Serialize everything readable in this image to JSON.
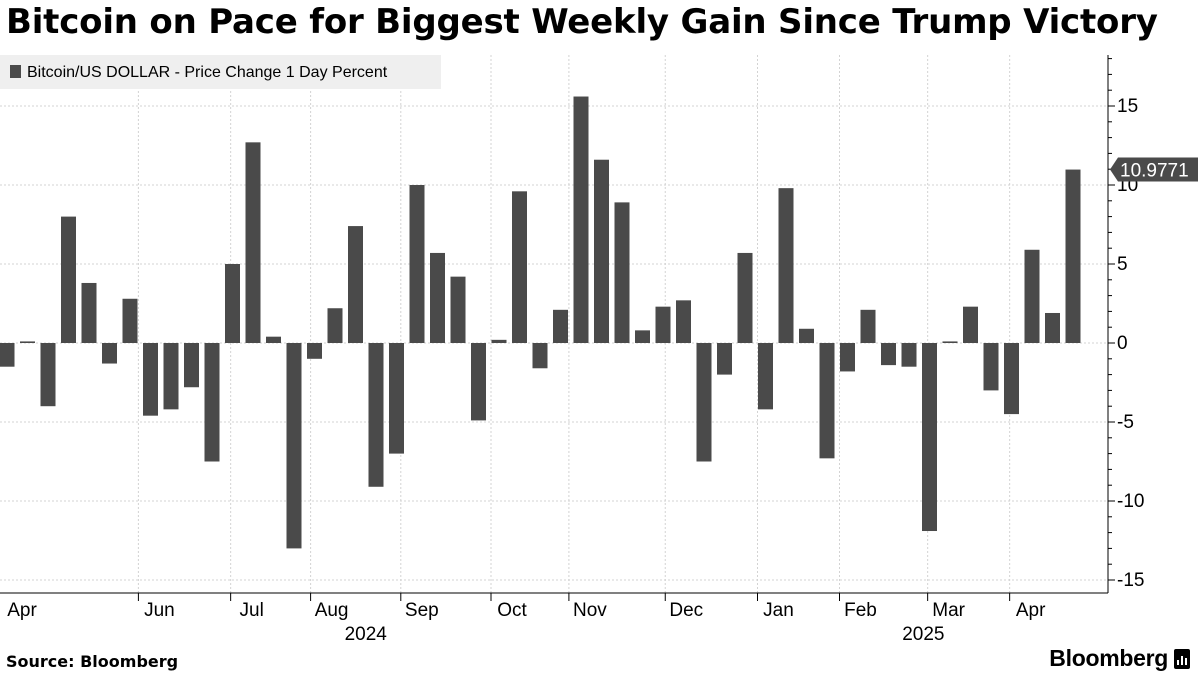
{
  "header": {
    "title": "Bitcoin on Pace for Biggest Weekly Gain Since Trump Victory"
  },
  "footer": {
    "source": "Source: Bloomberg",
    "brand": "Bloomberg"
  },
  "colors": {
    "bar": "#4a4a4a",
    "grid": "#d3d3d3",
    "legend_bg": "#efefef",
    "callout": "#4a4a4a"
  },
  "chart_data": {
    "type": "bar",
    "series": [
      {
        "name": "Bitcoin/US DOLLAR - Price Change 1 Day Percent",
        "values": [
          -1.5,
          0.1,
          -4.0,
          8.0,
          3.8,
          -1.3,
          2.8,
          -4.6,
          -4.2,
          -2.8,
          -7.5,
          5.0,
          12.7,
          0.4,
          -13.0,
          -1.0,
          2.2,
          7.4,
          -9.1,
          -7.0,
          10.0,
          5.7,
          4.2,
          -4.9,
          0.2,
          9.6,
          -1.6,
          2.1,
          15.6,
          11.6,
          8.9,
          0.8,
          2.3,
          2.7,
          -7.5,
          -2.0,
          5.7,
          -4.2,
          9.8,
          0.9,
          -7.3,
          -1.8,
          2.1,
          -1.4,
          -1.5,
          -11.9,
          0.1,
          2.3,
          -3.0,
          -4.5,
          5.9,
          1.9,
          10.9771
        ]
      }
    ],
    "ylim": [
      -15,
      18
    ],
    "yticks": [
      -15,
      -10,
      -5,
      0,
      5,
      10,
      15
    ],
    "y_axis_side": "right",
    "grid": true,
    "legend_position": "top-left",
    "callout_value": "10.9771",
    "month_labels": [
      {
        "label": "Apr",
        "bar_index": 0
      },
      {
        "label": "Jun",
        "bar_index": 6.8
      },
      {
        "label": "Jul",
        "bar_index": 11.3
      },
      {
        "label": "Aug",
        "bar_index": 15.2
      },
      {
        "label": "Sep",
        "bar_index": 19.6
      },
      {
        "label": "Oct",
        "bar_index": 24.0
      },
      {
        "label": "Nov",
        "bar_index": 27.8
      },
      {
        "label": "Dec",
        "bar_index": 32.5
      },
      {
        "label": "Jan",
        "bar_index": 37.0
      },
      {
        "label": "Feb",
        "bar_index": 41.0
      },
      {
        "label": "Mar",
        "bar_index": 45.3
      },
      {
        "label": "Apr",
        "bar_index": 49.3
      }
    ],
    "year_labels": [
      {
        "label": "2024",
        "bar_index": 17.5
      },
      {
        "label": "2025",
        "bar_index": 44.7
      }
    ]
  }
}
